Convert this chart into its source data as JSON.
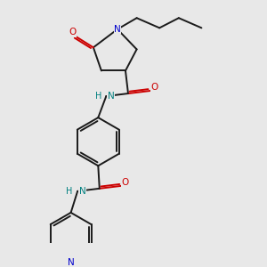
{
  "background_color": "#e8e8e8",
  "bond_color": "#1a1a1a",
  "nitrogen_color": "#0000cc",
  "oxygen_color": "#cc0000",
  "nh_color": "#008080",
  "figsize": [
    3.0,
    3.0
  ],
  "dpi": 100,
  "xlim": [
    -1.5,
    5.5
  ],
  "ylim": [
    -4.5,
    4.5
  ]
}
